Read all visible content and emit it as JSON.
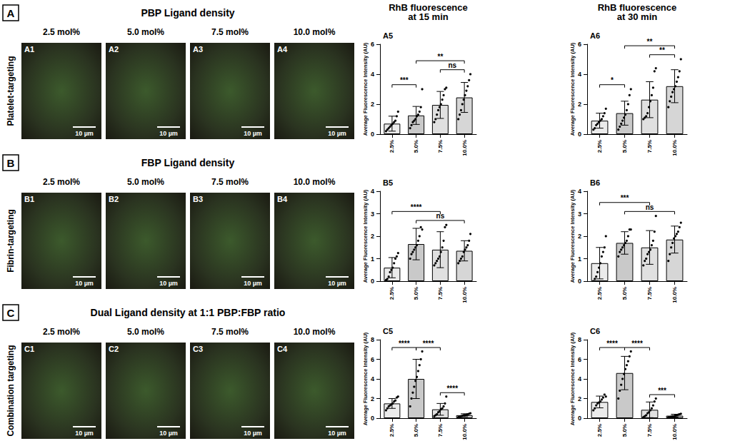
{
  "figure": {
    "column_titles": [
      "RhB fluorescence\nat 15 min",
      "RhB fluorescence\nat 30 min"
    ],
    "scale_bar": "10 µm",
    "rows": [
      {
        "letter": "A",
        "title": "PBP Ligand density",
        "side_label": "Platelet-targeting",
        "panels": [
          {
            "label": "A1",
            "header": "2.5 mol%"
          },
          {
            "label": "A2",
            "header": "5.0 mol%"
          },
          {
            "label": "A3",
            "header": "7.5 mol%"
          },
          {
            "label": "A4",
            "header": "10.0 mol%"
          }
        ]
      },
      {
        "letter": "B",
        "title": "FBP Ligand density",
        "side_label": "Fibrin-targeting",
        "panels": [
          {
            "label": "B1",
            "header": "2.5 mol%"
          },
          {
            "label": "B2",
            "header": "5.0 mol%"
          },
          {
            "label": "B3",
            "header": "7.5 mol%"
          },
          {
            "label": "B4",
            "header": "10.0 mol%"
          }
        ]
      },
      {
        "letter": "C",
        "title": "Dual Ligand density at 1:1 PBP:FBP ratio",
        "side_label": "Combination targeting",
        "panels": [
          {
            "label": "C1",
            "header": "2.5 mol%"
          },
          {
            "label": "C2",
            "header": "5.0 mol%"
          },
          {
            "label": "C3",
            "header": "7.5 mol%"
          },
          {
            "label": "C4",
            "header": "10.0 mol%"
          }
        ]
      }
    ]
  },
  "chart_data": [
    {
      "type": "bar",
      "panel_label": "A5",
      "ylabel": "Average Fluorescence Intensity (AU)",
      "categories": [
        "2.5%",
        "5.0%",
        "7.5%",
        "10.0%"
      ],
      "values": [
        0.7,
        1.25,
        1.95,
        2.45
      ],
      "errors": [
        0.5,
        0.6,
        0.9,
        1.0
      ],
      "points": [
        [
          0.2,
          0.3,
          0.4,
          0.5,
          0.6,
          0.7,
          0.8,
          0.9,
          1.2,
          1.5
        ],
        [
          0.4,
          0.6,
          0.8,
          0.9,
          1.0,
          1.2,
          1.3,
          1.5,
          1.8,
          3.0
        ],
        [
          0.8,
          1.0,
          1.3,
          1.6,
          1.8,
          2.0,
          2.3,
          2.6,
          3.0,
          3.1
        ],
        [
          1.0,
          1.3,
          1.6,
          2.0,
          2.3,
          2.6,
          2.9,
          3.2,
          3.6,
          4.0
        ]
      ],
      "colors": [
        "#ebebeb",
        "#c9c9c9",
        "#e0e0e0",
        "#d6d6d6"
      ],
      "ylim": [
        0,
        6
      ],
      "yticks": [
        0,
        2,
        4,
        6
      ],
      "grid": false,
      "marker": "circle",
      "significance": [
        {
          "from": "2.5%",
          "to": "5.0%",
          "label": "***"
        },
        {
          "from": "7.5%",
          "to": "10.0%",
          "label": "ns"
        },
        {
          "from": "5.0%",
          "to": "10.0%",
          "label": "**"
        }
      ]
    },
    {
      "type": "bar",
      "panel_label": "A6",
      "ylabel": "Average Fluorescence Intensity (AU)",
      "categories": [
        "2.5%",
        "5.0%",
        "7.5%",
        "10.0%"
      ],
      "values": [
        0.9,
        1.4,
        2.3,
        3.2
      ],
      "errors": [
        0.5,
        0.8,
        1.2,
        1.1
      ],
      "points": [
        [
          0.3,
          0.4,
          0.6,
          0.7,
          0.8,
          0.9,
          1.0,
          1.2,
          1.4,
          1.7
        ],
        [
          0.3,
          0.5,
          0.7,
          0.9,
          1.1,
          1.3,
          1.6,
          2.0,
          2.6,
          3.0
        ],
        [
          1.0,
          1.1,
          1.2,
          1.4,
          1.8,
          2.2,
          2.6,
          3.1,
          4.2,
          4.4
        ],
        [
          1.8,
          2.2,
          2.5,
          2.8,
          3.0,
          3.2,
          3.5,
          3.8,
          4.2,
          5.0
        ]
      ],
      "colors": [
        "#ebebeb",
        "#c9c9c9",
        "#e0e0e0",
        "#d6d6d6"
      ],
      "ylim": [
        0,
        6
      ],
      "yticks": [
        0,
        2,
        4,
        6
      ],
      "grid": false,
      "marker": "circle",
      "significance": [
        {
          "from": "2.5%",
          "to": "5.0%",
          "label": "*"
        },
        {
          "from": "7.5%",
          "to": "10.0%",
          "label": "**"
        },
        {
          "from": "5.0%",
          "to": "10.0%",
          "label": "**"
        }
      ]
    },
    {
      "type": "bar",
      "panel_label": "B5",
      "ylabel": "Average Fluorescence Intensity (AU)",
      "categories": [
        "2.5%",
        "5.0%",
        "7.5%",
        "10.0%"
      ],
      "values": [
        0.6,
        1.65,
        1.4,
        1.35
      ],
      "errors": [
        0.45,
        0.7,
        0.8,
        0.45
      ],
      "points": [
        [
          0.05,
          0.1,
          0.2,
          0.4,
          0.5,
          0.6,
          0.8,
          1.0,
          1.1,
          1.25
        ],
        [
          1.0,
          1.2,
          1.3,
          1.4,
          1.5,
          1.6,
          1.8,
          2.0,
          2.4,
          2.3
        ],
        [
          0.7,
          0.8,
          0.9,
          1.0,
          1.1,
          1.3,
          1.5,
          1.8,
          2.4,
          2.5
        ],
        [
          0.8,
          0.9,
          1.0,
          1.1,
          1.3,
          1.4,
          1.5,
          1.6,
          1.8,
          2.1
        ]
      ],
      "colors": [
        "#ebebeb",
        "#c9c9c9",
        "#e0e0e0",
        "#d6d6d6"
      ],
      "ylim": [
        0,
        4
      ],
      "yticks": [
        0,
        1,
        2,
        3,
        4
      ],
      "grid": false,
      "marker": "circle",
      "significance": [
        {
          "from": "5.0%",
          "to": "10.0%",
          "label": "ns"
        },
        {
          "from": "2.5%",
          "to": "7.5%",
          "label": "****"
        }
      ]
    },
    {
      "type": "bar",
      "panel_label": "B6",
      "ylabel": "Average Fluorescence Intensity (AU)",
      "categories": [
        "2.5%",
        "5.0%",
        "7.5%",
        "10.0%"
      ],
      "values": [
        0.8,
        1.7,
        1.5,
        1.85
      ],
      "errors": [
        0.7,
        0.5,
        0.75,
        0.6
      ],
      "points": [
        [
          0.0,
          0.1,
          0.2,
          0.4,
          0.6,
          0.8,
          1.1,
          1.3,
          1.5,
          2.0
        ],
        [
          1.1,
          1.3,
          1.4,
          1.5,
          1.6,
          1.7,
          1.8,
          2.0,
          2.3,
          2.3
        ],
        [
          0.7,
          0.9,
          1.0,
          1.2,
          1.3,
          1.4,
          1.6,
          1.8,
          2.2,
          2.9
        ],
        [
          0.9,
          1.2,
          1.5,
          1.7,
          1.9,
          2.0,
          2.1,
          2.2,
          2.4,
          2.6
        ]
      ],
      "colors": [
        "#ebebeb",
        "#c9c9c9",
        "#e0e0e0",
        "#d6d6d6"
      ],
      "ylim": [
        0,
        4
      ],
      "yticks": [
        0,
        1,
        2,
        3,
        4
      ],
      "grid": false,
      "marker": "circle",
      "significance": [
        {
          "from": "5.0%",
          "to": "10.0%",
          "label": "ns"
        },
        {
          "from": "2.5%",
          "to": "7.5%",
          "label": "***"
        }
      ]
    },
    {
      "type": "bar",
      "panel_label": "C5",
      "ylabel": "Average Fluorescence Intensity (AU)",
      "categories": [
        "2.5%",
        "5.0%",
        "7.5%",
        "10.0%"
      ],
      "values": [
        1.5,
        4.0,
        0.9,
        0.3
      ],
      "errors": [
        0.5,
        2.0,
        0.6,
        0.15
      ],
      "points": [
        [
          0.8,
          1.0,
          1.2,
          1.3,
          1.4,
          1.5,
          1.7,
          1.8,
          2.1,
          2.2
        ],
        [
          1.2,
          2.0,
          2.6,
          3.2,
          3.8,
          4.2,
          4.8,
          5.4,
          6.0,
          6.8
        ],
        [
          0.2,
          0.3,
          0.4,
          0.6,
          0.7,
          0.9,
          1.0,
          1.2,
          1.5,
          2.2
        ],
        [
          0.1,
          0.15,
          0.2,
          0.25,
          0.3,
          0.3,
          0.35,
          0.4,
          0.45,
          0.5
        ]
      ],
      "colors": [
        "#ebebeb",
        "#c9c9c9",
        "#e0e0e0",
        "#d6d6d6"
      ],
      "ylim": [
        0,
        8
      ],
      "yticks": [
        0,
        2,
        4,
        6,
        8
      ],
      "grid": false,
      "marker": "circle",
      "significance": [
        {
          "from": "2.5%",
          "to": "5.0%",
          "label": "****"
        },
        {
          "from": "5.0%",
          "to": "7.5%",
          "label": "****"
        },
        {
          "from": "7.5%",
          "to": "10.0%",
          "label": "****"
        }
      ]
    },
    {
      "type": "bar",
      "panel_label": "C6",
      "ylabel": "Average Fluorescence Intensity (AU)",
      "categories": [
        "2.5%",
        "5.0%",
        "7.5%",
        "10.0%"
      ],
      "values": [
        1.65,
        4.6,
        0.85,
        0.25
      ],
      "errors": [
        0.6,
        1.7,
        0.8,
        0.15
      ],
      "points": [
        [
          0.8,
          1.0,
          1.3,
          1.5,
          1.6,
          1.7,
          1.9,
          2.1,
          2.4,
          2.2
        ],
        [
          2.0,
          2.8,
          3.4,
          4.0,
          4.5,
          5.0,
          5.4,
          5.8,
          6.3,
          6.8
        ],
        [
          0.1,
          0.2,
          0.3,
          0.5,
          0.6,
          0.8,
          1.0,
          1.3,
          1.7,
          2.0
        ],
        [
          0.1,
          0.1,
          0.15,
          0.2,
          0.2,
          0.25,
          0.3,
          0.35,
          0.4,
          0.45
        ]
      ],
      "colors": [
        "#ebebeb",
        "#c9c9c9",
        "#e0e0e0",
        "#d6d6d6"
      ],
      "ylim": [
        0,
        8
      ],
      "yticks": [
        0,
        2,
        4,
        6,
        8
      ],
      "grid": false,
      "marker": "circle",
      "significance": [
        {
          "from": "2.5%",
          "to": "5.0%",
          "label": "****"
        },
        {
          "from": "5.0%",
          "to": "7.5%",
          "label": "****"
        },
        {
          "from": "7.5%",
          "to": "10.0%",
          "label": "***"
        }
      ]
    }
  ]
}
